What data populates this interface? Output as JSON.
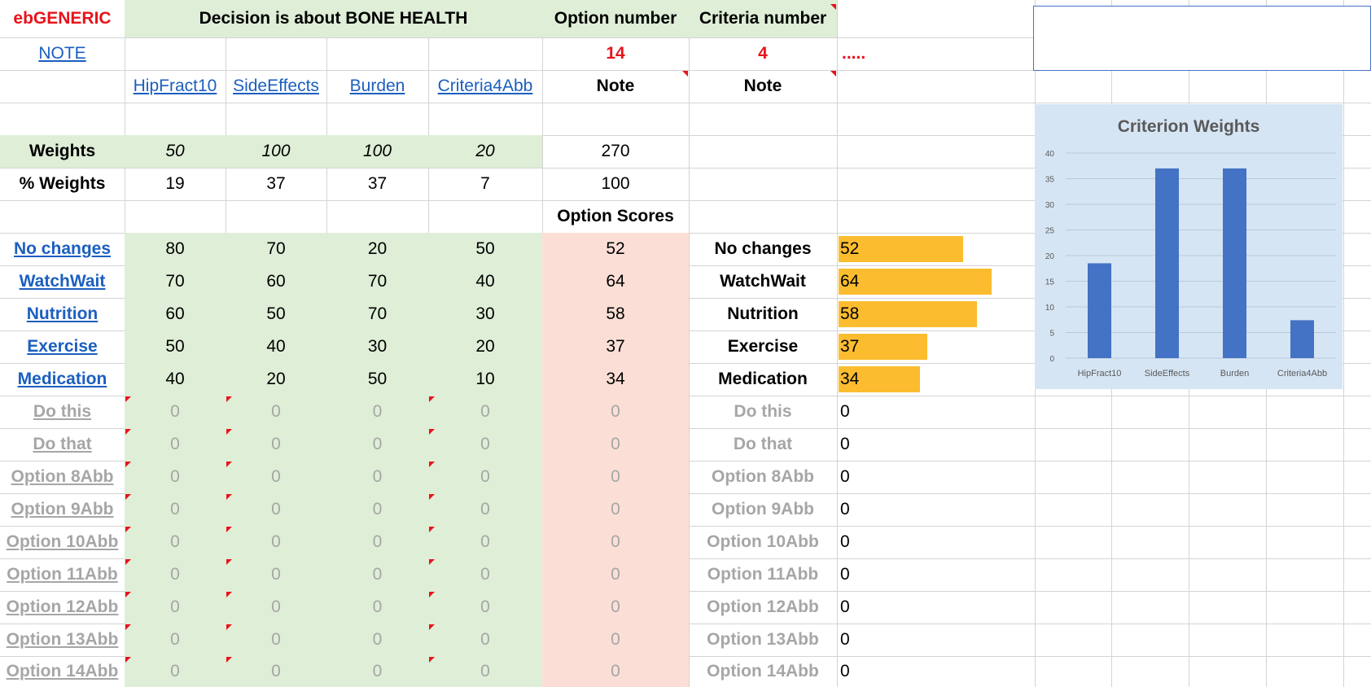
{
  "header": {
    "app_title": "ebGENERIC",
    "decision_title": "Decision is about BONE HEALTH",
    "option_number_label": "Option number",
    "criteria_number_label": "Criteria number",
    "note_link": "NOTE",
    "option_number_value": "14",
    "criteria_number_value": "4",
    "dots": ".....",
    "note_label_1": "Note",
    "note_label_2": "Note",
    "option_scores_label": "Option Scores"
  },
  "criteria": [
    "HipFract10",
    "SideEffects",
    "Burden",
    "Criteria4Abb"
  ],
  "weights": {
    "label": "Weights",
    "values": [
      "50",
      "100",
      "100",
      "20"
    ],
    "total": "270"
  },
  "pct_weights": {
    "label": "% Weights",
    "values": [
      "19",
      "37",
      "37",
      "7"
    ],
    "total": "100"
  },
  "options": [
    {
      "name": "No changes",
      "scores": [
        "80",
        "70",
        "20",
        "50"
      ],
      "total": "52",
      "active": true
    },
    {
      "name": "WatchWait",
      "scores": [
        "70",
        "60",
        "70",
        "40"
      ],
      "total": "64",
      "active": true
    },
    {
      "name": "Nutrition",
      "scores": [
        "60",
        "50",
        "70",
        "30"
      ],
      "total": "58",
      "active": true
    },
    {
      "name": "Exercise",
      "scores": [
        "50",
        "40",
        "30",
        "20"
      ],
      "total": "37",
      "active": true
    },
    {
      "name": "Medication",
      "scores": [
        "40",
        "20",
        "50",
        "10"
      ],
      "total": "34",
      "active": true
    },
    {
      "name": "Do this",
      "scores": [
        "0",
        "0",
        "0",
        "0"
      ],
      "total": "0",
      "active": false
    },
    {
      "name": "Do that",
      "scores": [
        "0",
        "0",
        "0",
        "0"
      ],
      "total": "0",
      "active": false
    },
    {
      "name": "Option 8Abb",
      "scores": [
        "0",
        "0",
        "0",
        "0"
      ],
      "total": "0",
      "active": false
    },
    {
      "name": "Option 9Abb",
      "scores": [
        "0",
        "0",
        "0",
        "0"
      ],
      "total": "0",
      "active": false
    },
    {
      "name": "Option 10Abb",
      "scores": [
        "0",
        "0",
        "0",
        "0"
      ],
      "total": "0",
      "active": false
    },
    {
      "name": "Option 11Abb",
      "scores": [
        "0",
        "0",
        "0",
        "0"
      ],
      "total": "0",
      "active": false
    },
    {
      "name": "Option 12Abb",
      "scores": [
        "0",
        "0",
        "0",
        "0"
      ],
      "total": "0",
      "active": false
    },
    {
      "name": "Option 13Abb",
      "scores": [
        "0",
        "0",
        "0",
        "0"
      ],
      "total": "0",
      "active": false
    },
    {
      "name": "Option 14Abb",
      "scores": [
        "0",
        "0",
        "0",
        "0"
      ],
      "total": "0",
      "active": false
    }
  ],
  "colors": {
    "green_fill": "#dfeed7",
    "pink_fill": "#fbdfd6",
    "data_bar": "#fbbd2f",
    "chart_bar": "#4472c4",
    "chart_bg": "#d6e5f4",
    "link": "#1b5fbf",
    "red": "#e8131b"
  },
  "chart_data": {
    "type": "bar",
    "title": "Criterion Weights",
    "categories": [
      "HipFract10",
      "SideEffects",
      "Burden",
      "Criteria4Abb"
    ],
    "values": [
      18.5,
      37,
      37,
      7.4
    ],
    "ylim": [
      0,
      40
    ],
    "yticks": [
      "0",
      "5",
      "10",
      "15",
      "20",
      "25",
      "30",
      "35",
      "40"
    ],
    "grid": true,
    "xlabel": "",
    "ylabel": ""
  }
}
